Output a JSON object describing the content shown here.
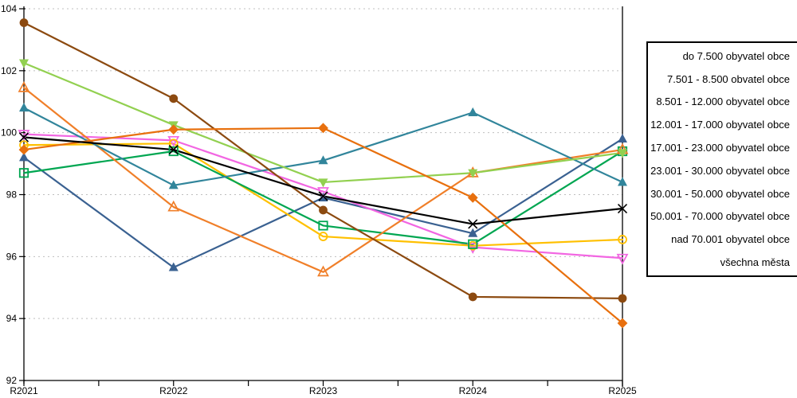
{
  "window": {
    "background": "#ffffff"
  },
  "chart_data": {
    "type": "line",
    "title": "",
    "xlabel": "",
    "ylabel": "",
    "categories": [
      "R2021",
      "R2022",
      "R2023",
      "R2024",
      "R2025"
    ],
    "ylim": [
      92,
      104
    ],
    "y_tick_step": 2,
    "y_tick_labels": [
      "92",
      "94",
      "96",
      "98",
      "100",
      "102",
      "104"
    ],
    "grid": "horizontal-dotted",
    "grid_color": "#bfbfbf",
    "axis_color": "#000000",
    "legend_position": "right-outside",
    "legend_border_color": "#000000",
    "series": [
      {
        "name": "do 7.500 obyvatel obce",
        "color": "#3a6191",
        "marker": "triangle-up",
        "values": [
          99.2,
          95.65,
          97.9,
          96.75,
          99.8
        ]
      },
      {
        "name": "7.501 - 8.500 obvatel obce",
        "color": "#f266e2",
        "marker": "triangle-down-open",
        "values": [
          99.95,
          99.75,
          98.1,
          96.3,
          95.95
        ]
      },
      {
        "name": "8.501 - 12.000 obyvatel obce",
        "color": "#ffc000",
        "marker": "circle-open",
        "values": [
          99.6,
          99.65,
          96.65,
          96.35,
          96.55
        ]
      },
      {
        "name": "12.001 - 17.000 obyvatel obce",
        "color": "#00a651",
        "marker": "square-open",
        "values": [
          98.7,
          99.4,
          97.0,
          96.4,
          99.4
        ]
      },
      {
        "name": "17.001 - 23.000 obyvatel obce",
        "color": "#f07f29",
        "marker": "triangle-up-open",
        "values": [
          101.45,
          97.6,
          95.5,
          98.7,
          99.45
        ]
      },
      {
        "name": "23.001 - 30.000 obyvatel obce",
        "color": "#31859b",
        "marker": "triangle-up",
        "values": [
          100.8,
          98.3,
          99.1,
          100.65,
          98.4
        ]
      },
      {
        "name": "30.001 - 50.000 obyvatel obce",
        "color": "#92d050",
        "marker": "triangle-down",
        "values": [
          102.25,
          100.25,
          98.4,
          98.7,
          99.35
        ]
      },
      {
        "name": "50.001 - 70.000 obyvatel obce",
        "color": "#8c4a10",
        "marker": "circle",
        "values": [
          103.55,
          101.1,
          97.5,
          94.7,
          94.65
        ]
      },
      {
        "name": "nad 70.001 obyvatel obce",
        "color": "#e8700e",
        "marker": "diamond",
        "values": [
          99.45,
          100.1,
          100.15,
          97.9,
          93.85
        ]
      },
      {
        "name": "všechna města",
        "color": "#000000",
        "marker": "x",
        "values": [
          99.85,
          99.45,
          97.95,
          97.05,
          97.55
        ]
      }
    ]
  }
}
